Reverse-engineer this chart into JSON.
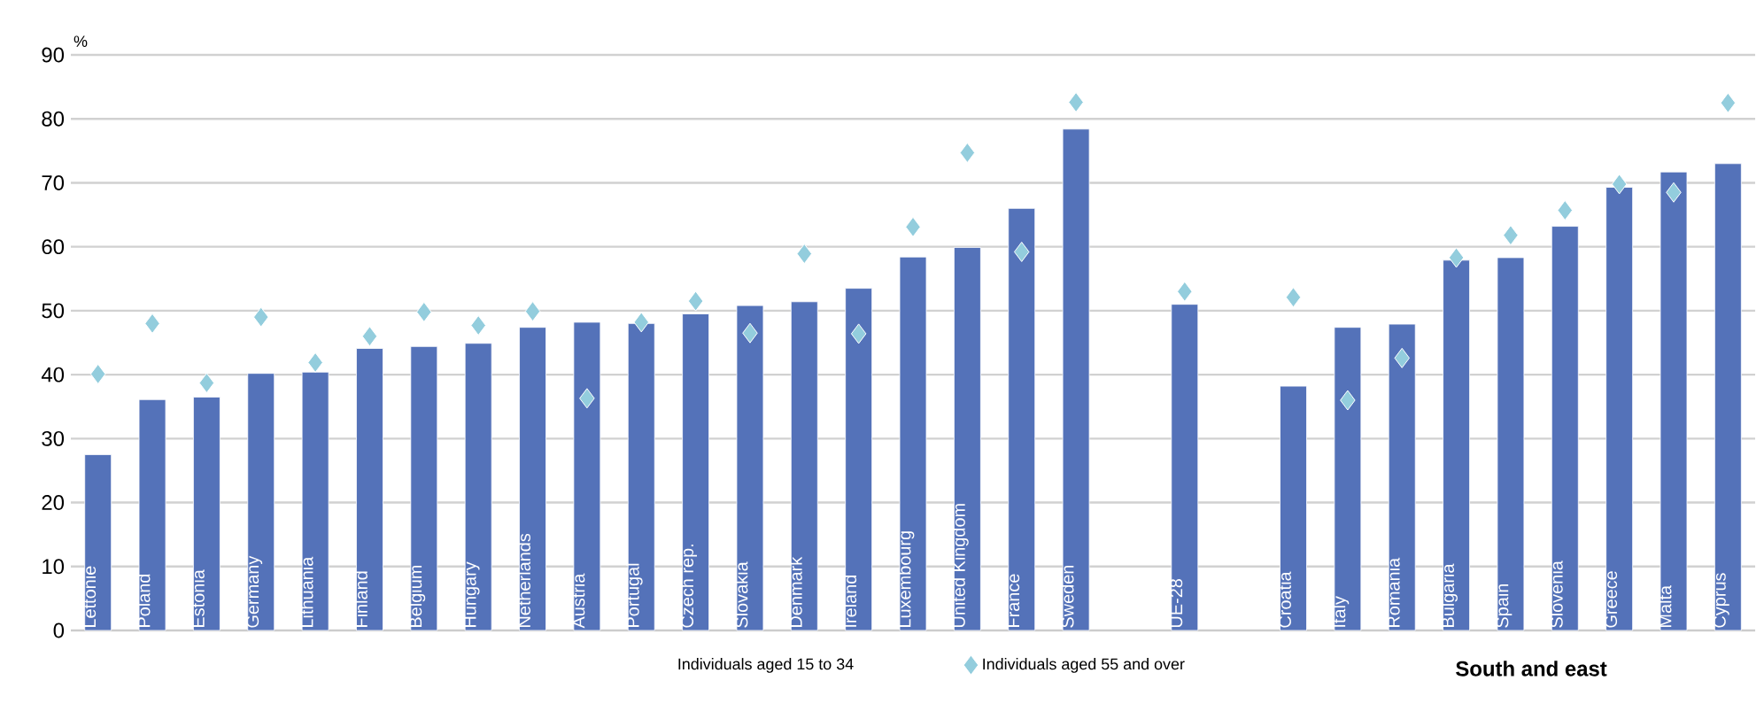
{
  "chart_data": {
    "type": "bar",
    "ylabel": "%",
    "categories": [
      "Lettonie",
      "Poland",
      "Estonia",
      "Germany",
      "Lithuania",
      "Finland",
      "Belgium",
      "Hungary",
      "Netherlands",
      "Austria",
      "Portugal",
      "Czech rep.",
      "Slovakia",
      "Denmark",
      "Ireland",
      "Luxembourg",
      "United Kingdom",
      "France",
      "Sweden",
      null,
      "UE-28",
      null,
      "Croatia",
      "Italy",
      "Romania",
      "Bulgaria",
      "Spain",
      "Slovenia",
      "Greece",
      "Malta",
      "Cyprus"
    ],
    "series": [
      {
        "name": "Individuals aged 15 to 34",
        "color": "#5472b9",
        "values": [
          27.5,
          36.1,
          36.5,
          40.2,
          40.4,
          44.1,
          44.4,
          44.9,
          47.4,
          48.2,
          48.0,
          49.5,
          50.8,
          51.4,
          53.5,
          58.4,
          59.9,
          66.0,
          78.4,
          null,
          51.0,
          null,
          38.2,
          47.4,
          47.9,
          57.9,
          58.3,
          63.2,
          69.3,
          71.7,
          73.0
        ]
      },
      {
        "name": "Individuals aged 55 and over",
        "type": "scatter",
        "marker": "diamond",
        "color": "#93cddd",
        "values": [
          40.1,
          48.0,
          38.7,
          49.0,
          41.9,
          46.0,
          49.8,
          47.7,
          49.9,
          36.3,
          48.2,
          51.5,
          46.5,
          58.9,
          46.4,
          63.1,
          74.7,
          59.2,
          82.6,
          null,
          53.0,
          null,
          52.1,
          36.0,
          42.6,
          58.3,
          61.8,
          65.7,
          69.8,
          68.5,
          82.5
        ]
      }
    ],
    "ylim": [
      0,
      90
    ],
    "yticks": [
      0,
      10,
      20,
      30,
      40,
      50,
      60,
      70,
      80,
      90
    ],
    "grid": "y",
    "legend": "bottom",
    "annotations": [
      "South and east"
    ]
  }
}
